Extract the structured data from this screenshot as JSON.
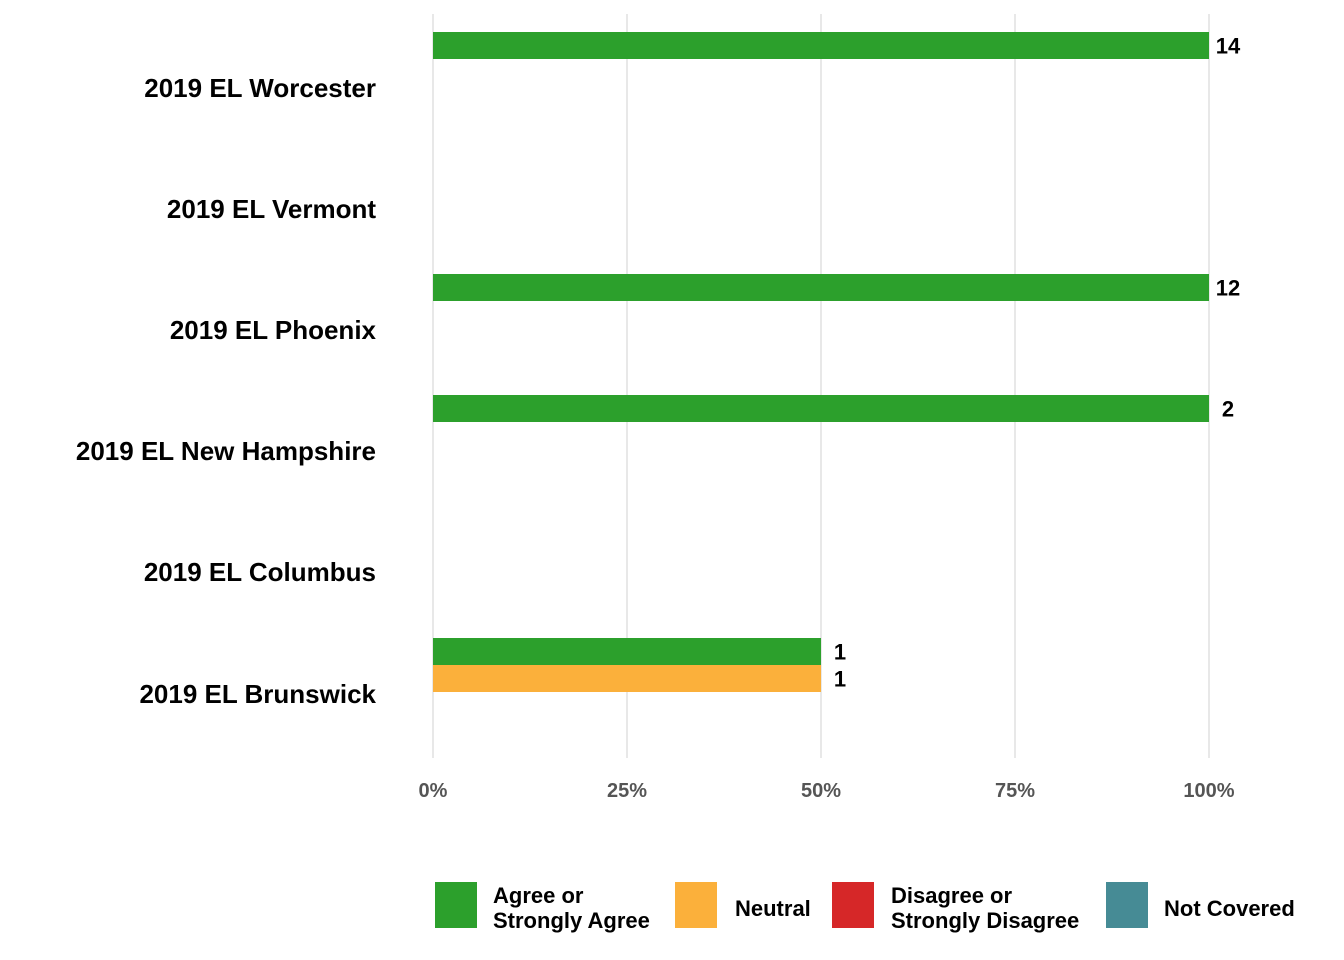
{
  "chart_data": {
    "type": "bar",
    "orientation": "horizontal",
    "stacking": "grouped",
    "categories": [
      "2019 EL Worcester",
      "2019 EL Vermont",
      "2019 EL Phoenix",
      "2019 EL New Hampshire",
      "2019 EL Columbus",
      "2019 EL Brunswick"
    ],
    "series": [
      {
        "name": "Agree or Strongly Agree",
        "color": "#2ca02c",
        "values": [
          1.0,
          null,
          1.0,
          1.0,
          null,
          0.5
        ],
        "labels": [
          "14",
          null,
          "12",
          "2",
          null,
          "1"
        ]
      },
      {
        "name": "Neutral",
        "color": "#fbb03b",
        "values": [
          null,
          null,
          null,
          null,
          null,
          0.5
        ],
        "labels": [
          null,
          null,
          null,
          null,
          null,
          "1"
        ]
      },
      {
        "name": "Disagree or Strongly Disagree",
        "color": "#d62728",
        "values": [
          null,
          null,
          null,
          null,
          null,
          null
        ],
        "labels": [
          null,
          null,
          null,
          null,
          null,
          null
        ]
      },
      {
        "name": "Not Covered",
        "color": "#468b95",
        "values": [
          null,
          null,
          null,
          null,
          null,
          null
        ],
        "labels": [
          null,
          null,
          null,
          null,
          null,
          null
        ]
      }
    ],
    "xlim": [
      0,
      1
    ],
    "x_ticks": [
      0,
      0.25,
      0.5,
      0.75,
      1.0
    ],
    "x_tick_labels": [
      "0%",
      "25%",
      "50%",
      "75%",
      "100%"
    ],
    "grid": "vertical",
    "legend": {
      "position": "bottom",
      "entries": [
        {
          "lines": [
            "Agree or",
            "Strongly Agree"
          ],
          "color": "#2ca02c"
        },
        {
          "lines": [
            "Neutral"
          ],
          "color": "#fbb03b"
        },
        {
          "lines": [
            "Disagree or",
            "Strongly Disagree"
          ],
          "color": "#d62728"
        },
        {
          "lines": [
            "Not Covered"
          ],
          "color": "#468b95"
        }
      ]
    }
  }
}
